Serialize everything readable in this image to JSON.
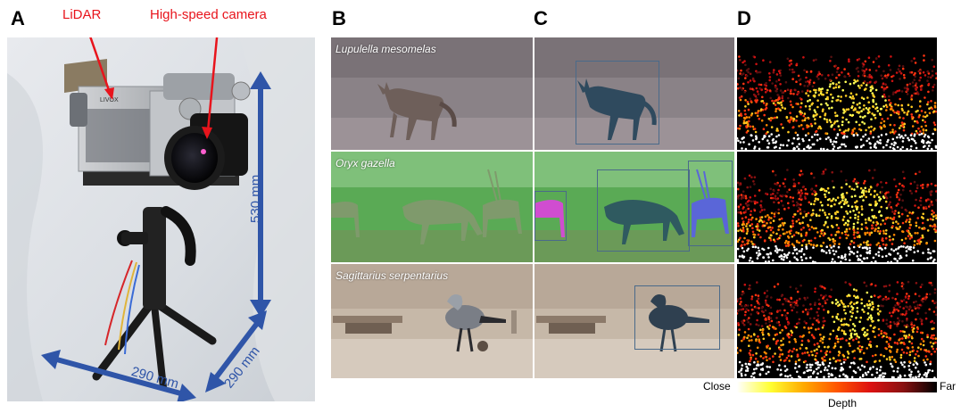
{
  "panels": {
    "a": "A",
    "b": "B",
    "c": "C",
    "d": "D"
  },
  "setup": {
    "lidar_label": "LiDAR",
    "camera_label": "High-speed camera",
    "height_label": "530 mm",
    "width_label_front": "290 mm",
    "width_label_side": "290 mm"
  },
  "species": [
    "Lupulella mesomelas",
    "Oryx gazella",
    "Sagittarius serpentarius"
  ],
  "depth_legend": {
    "close_label": "Close",
    "far_label": "Far",
    "title": "Depth",
    "gradient_colors": [
      "#ffffff",
      "#ffff33",
      "#ffaa00",
      "#ff5500",
      "#dd1111",
      "#881111",
      "#000000"
    ]
  },
  "colors": {
    "label_red": "#e8141c",
    "dimension_blue": "#2f55a8",
    "bbox": "#4a6a8a"
  }
}
